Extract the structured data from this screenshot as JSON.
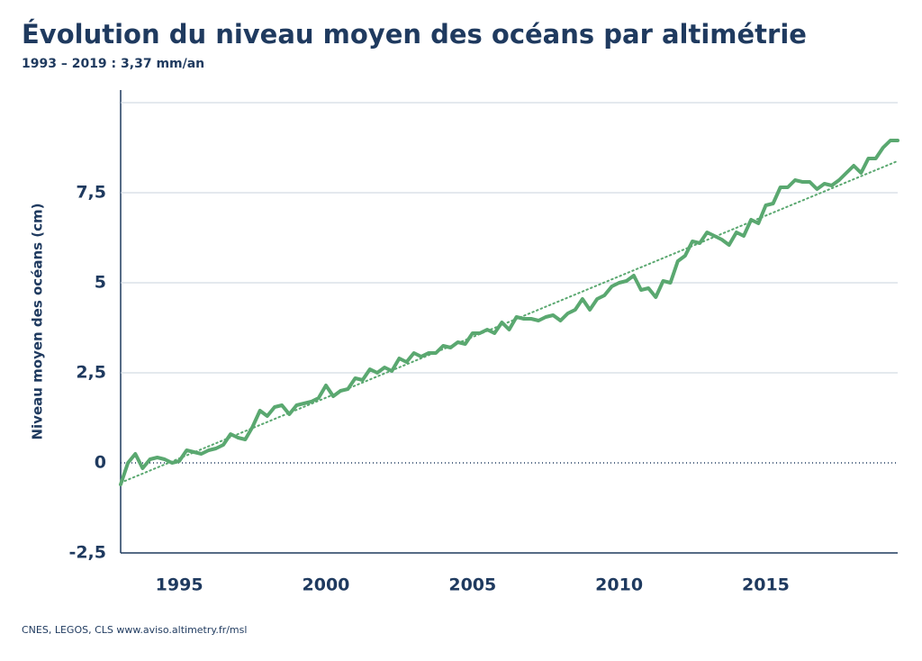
{
  "chart_data": {
    "type": "line",
    "title": "Évolution du niveau moyen des océans par altimétrie",
    "subtitle": "1993 – 2019 : 3,37 mm/an",
    "ylabel": "Niveau  moyen des océans (cm)",
    "source": "CNES, LEGOS, CLS  www.aviso.altimetry.fr/msl",
    "xlim": [
      1993,
      2019.5
    ],
    "xticks": [
      1995,
      2000,
      2005,
      2010,
      2015
    ],
    "ylim": [
      -2.5,
      10.35
    ],
    "yticks": [
      {
        "value": -2.5,
        "label": "-2,5"
      },
      0,
      {
        "value": 2.5,
        "label": "2,5"
      },
      5,
      {
        "value": 7.5,
        "label": "7,5"
      }
    ],
    "ygrid": [
      -2.5,
      0,
      2.5,
      5,
      7.5,
      10
    ],
    "series": [
      {
        "color": "#5aa870",
        "style": "solid",
        "x": [
          1993,
          1993.25,
          1993.5,
          1993.75,
          1994,
          1994.25,
          1994.5,
          1994.75,
          1995,
          1995.25,
          1995.5,
          1995.75,
          1996,
          1996.25,
          1996.5,
          1996.75,
          1997,
          1997.25,
          1997.5,
          1997.75,
          1998,
          1998.25,
          1998.5,
          1998.75,
          1999,
          1999.25,
          1999.5,
          1999.75,
          2000,
          2000.25,
          2000.5,
          2000.75,
          2001,
          2001.25,
          2001.5,
          2001.75,
          2002,
          2002.25,
          2002.5,
          2002.75,
          2003,
          2003.25,
          2003.5,
          2003.75,
          2004,
          2004.25,
          2004.5,
          2004.75,
          2005,
          2005.25,
          2005.5,
          2005.75,
          2006,
          2006.25,
          2006.5,
          2006.75,
          2007,
          2007.25,
          2007.5,
          2007.75,
          2008,
          2008.25,
          2008.5,
          2008.75,
          2009,
          2009.25,
          2009.5,
          2009.75,
          2010,
          2010.25,
          2010.5,
          2010.75,
          2011,
          2011.25,
          2011.5,
          2011.75,
          2012,
          2012.25,
          2012.5,
          2012.75,
          2013,
          2013.25,
          2013.5,
          2013.75,
          2014,
          2014.25,
          2014.5,
          2014.75,
          2015,
          2015.25,
          2015.5,
          2015.75,
          2016,
          2016.25,
          2016.5,
          2016.75,
          2017,
          2017.25,
          2017.5,
          2017.75,
          2018,
          2018.25,
          2018.5,
          2018.75,
          2019,
          2019.25,
          2019.5
        ],
        "values": [
          -0.6,
          0,
          0.25,
          -0.15,
          0.1,
          0.15,
          0.1,
          0,
          0.05,
          0.35,
          0.3,
          0.25,
          0.35,
          0.4,
          0.5,
          0.8,
          0.7,
          0.65,
          1,
          1.45,
          1.3,
          1.55,
          1.6,
          1.35,
          1.6,
          1.65,
          1.7,
          1.8,
          2.15,
          1.85,
          2,
          2.05,
          2.35,
          2.3,
          2.6,
          2.5,
          2.65,
          2.55,
          2.9,
          2.8,
          3.05,
          2.95,
          3.05,
          3.05,
          3.25,
          3.2,
          3.35,
          3.3,
          3.6,
          3.6,
          3.7,
          3.6,
          3.9,
          3.7,
          4.05,
          4,
          4,
          3.95,
          4.05,
          4.1,
          3.95,
          4.15,
          4.25,
          4.55,
          4.25,
          4.55,
          4.65,
          4.9,
          5,
          5.05,
          5.2,
          4.8,
          4.85,
          4.6,
          5.05,
          5,
          5.6,
          5.75,
          6.15,
          6.1,
          6.4,
          6.3,
          6.2,
          6.05,
          6.4,
          6.3,
          6.75,
          6.65,
          7.15,
          7.2,
          7.65,
          7.65,
          7.85,
          7.8,
          7.8,
          7.6,
          7.75,
          7.7,
          7.85,
          8.05,
          8.25,
          8.05,
          8.45,
          8.45,
          8.75,
          8.95,
          8.95
        ]
      },
      {
        "color": "#5aa870",
        "style": "dotted",
        "x": [
          1993,
          2019.5
        ],
        "values": [
          -0.55,
          8.38
        ]
      }
    ]
  }
}
